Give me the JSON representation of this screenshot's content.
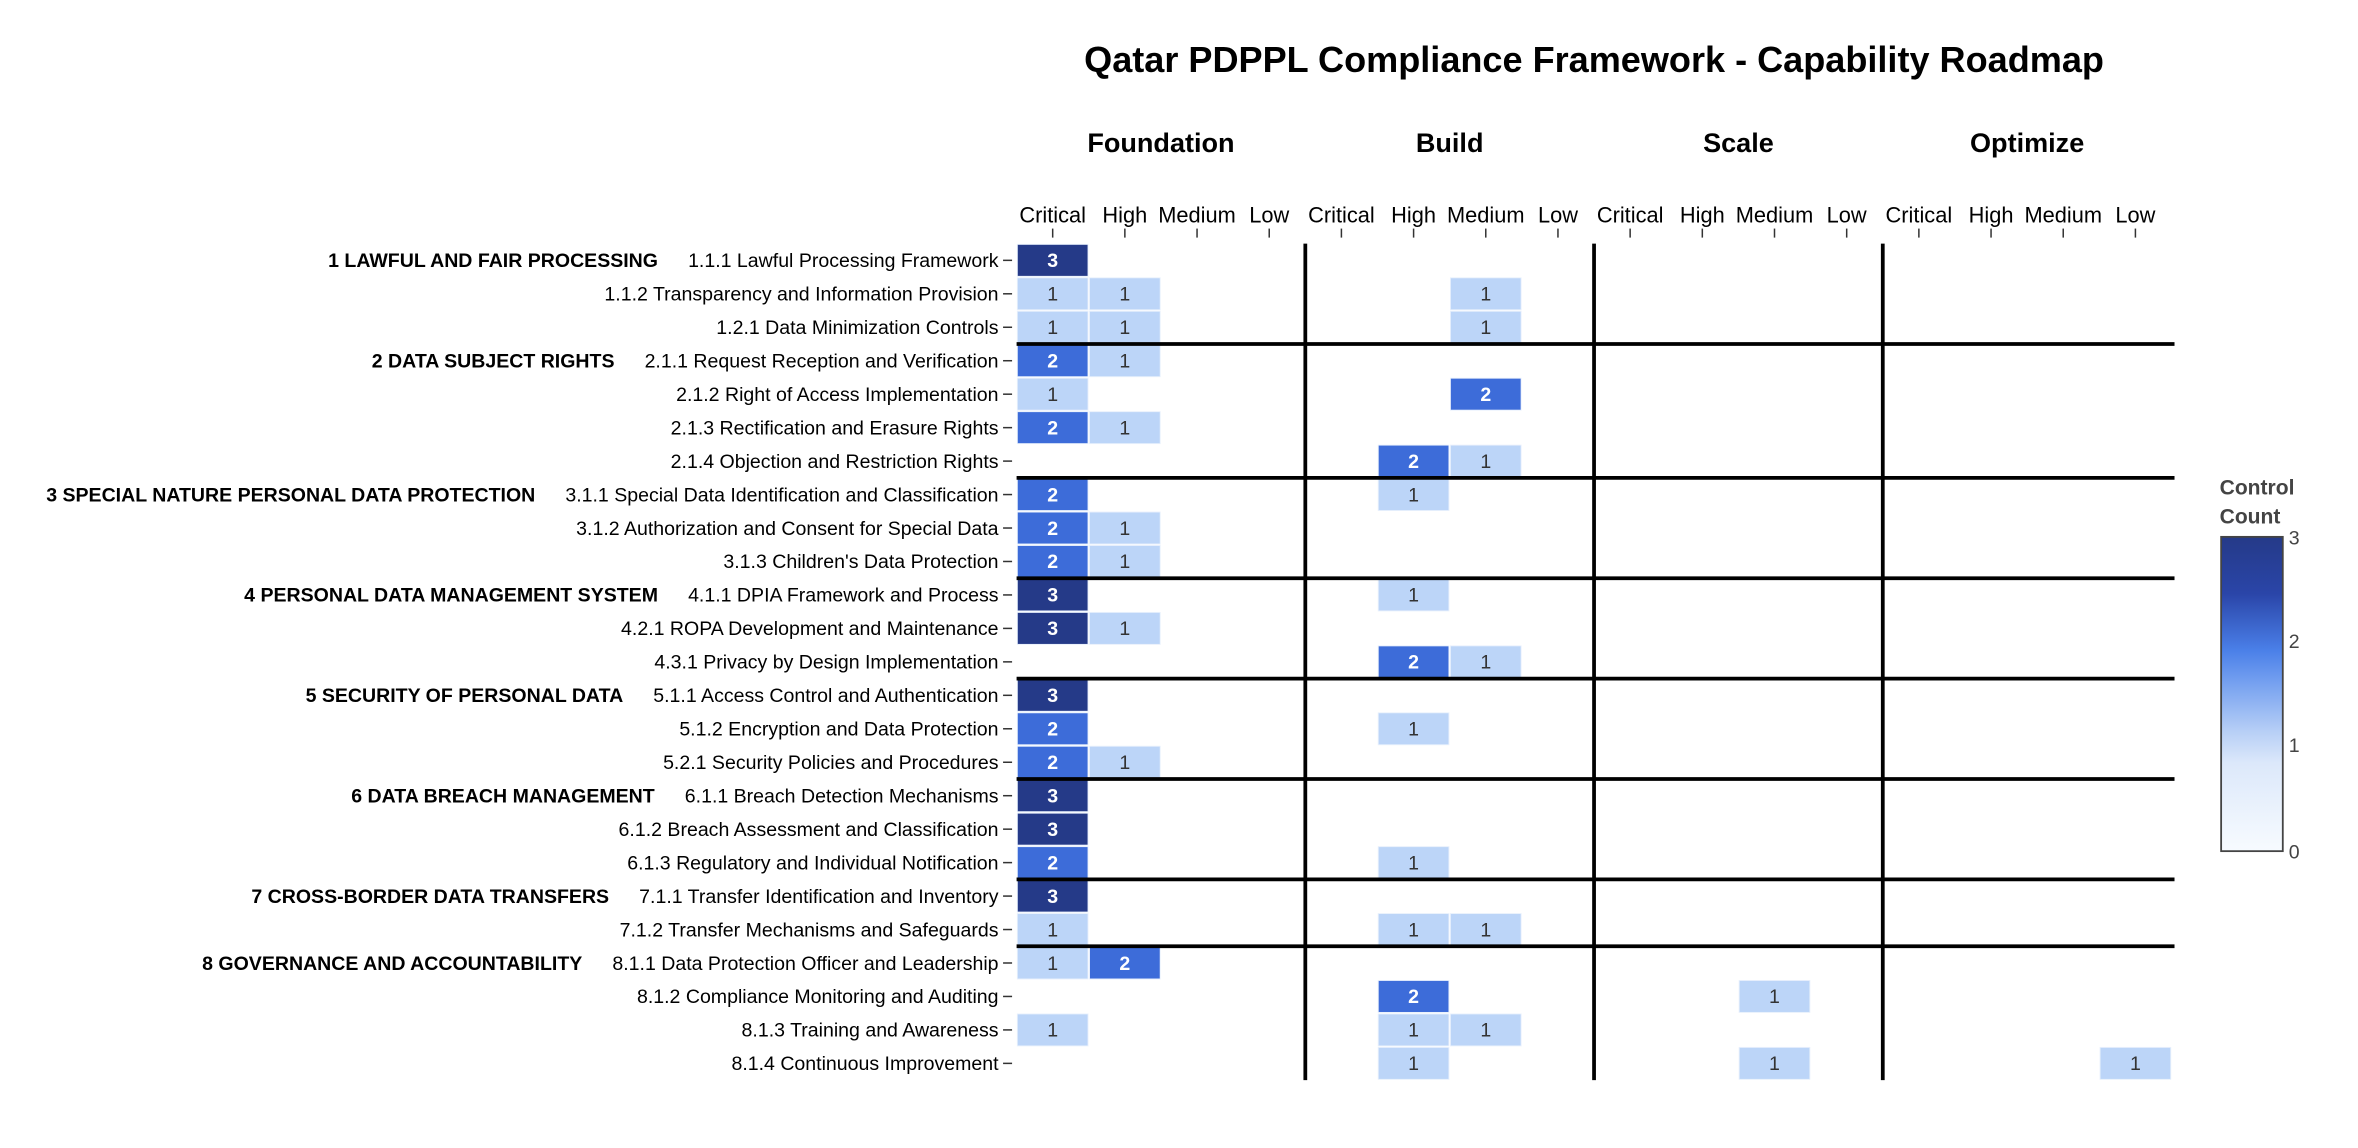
{
  "chart_data": {
    "type": "heatmap",
    "title": "Qatar PDPPL Compliance Framework - Capability Roadmap",
    "phases": [
      "Foundation",
      "Build",
      "Scale",
      "Optimize"
    ],
    "priorities": [
      "Critical",
      "High",
      "Medium",
      "Low"
    ],
    "colorbar": {
      "title_lines": [
        "Control",
        "Count"
      ],
      "range": [
        0,
        3
      ],
      "ticks": [
        "0",
        "1",
        "2",
        "3"
      ]
    },
    "colors": {
      "0": "#ffffff",
      "1": "#bcd5f8",
      "2": "#3d6cd9",
      "3": "#253a88",
      "text_light": "#ffffff",
      "text_dark": "#333333"
    },
    "groups": [
      {
        "label": "1 LAWFUL AND FAIR PROCESSING",
        "rows": [
          {
            "label": "1.1.1 Lawful Processing Framework",
            "cells": [
              {
                "phase": "Foundation",
                "priority": "Critical",
                "value": 3
              }
            ]
          },
          {
            "label": "1.1.2 Transparency and Information Provision",
            "cells": [
              {
                "phase": "Foundation",
                "priority": "Critical",
                "value": 1
              },
              {
                "phase": "Foundation",
                "priority": "High",
                "value": 1
              },
              {
                "phase": "Build",
                "priority": "Medium",
                "value": 1
              }
            ]
          },
          {
            "label": "1.2.1 Data Minimization Controls",
            "cells": [
              {
                "phase": "Foundation",
                "priority": "Critical",
                "value": 1
              },
              {
                "phase": "Foundation",
                "priority": "High",
                "value": 1
              },
              {
                "phase": "Build",
                "priority": "Medium",
                "value": 1
              }
            ]
          }
        ]
      },
      {
        "label": "2 DATA SUBJECT RIGHTS",
        "rows": [
          {
            "label": "2.1.1 Request Reception and Verification",
            "cells": [
              {
                "phase": "Foundation",
                "priority": "Critical",
                "value": 2
              },
              {
                "phase": "Foundation",
                "priority": "High",
                "value": 1
              }
            ]
          },
          {
            "label": "2.1.2 Right of Access Implementation",
            "cells": [
              {
                "phase": "Foundation",
                "priority": "Critical",
                "value": 1
              },
              {
                "phase": "Build",
                "priority": "Medium",
                "value": 2
              }
            ]
          },
          {
            "label": "2.1.3 Rectification and Erasure Rights",
            "cells": [
              {
                "phase": "Foundation",
                "priority": "Critical",
                "value": 2
              },
              {
                "phase": "Foundation",
                "priority": "High",
                "value": 1
              }
            ]
          },
          {
            "label": "2.1.4 Objection and Restriction Rights",
            "cells": [
              {
                "phase": "Build",
                "priority": "High",
                "value": 2
              },
              {
                "phase": "Build",
                "priority": "Medium",
                "value": 1
              }
            ]
          }
        ]
      },
      {
        "label": "3 SPECIAL NATURE PERSONAL DATA PROTECTION",
        "rows": [
          {
            "label": "3.1.1 Special Data Identification and Classification",
            "cells": [
              {
                "phase": "Foundation",
                "priority": "Critical",
                "value": 2
              },
              {
                "phase": "Build",
                "priority": "High",
                "value": 1
              }
            ]
          },
          {
            "label": "3.1.2 Authorization and Consent for Special Data",
            "cells": [
              {
                "phase": "Foundation",
                "priority": "Critical",
                "value": 2
              },
              {
                "phase": "Foundation",
                "priority": "High",
                "value": 1
              }
            ]
          },
          {
            "label": "3.1.3 Children's Data Protection",
            "cells": [
              {
                "phase": "Foundation",
                "priority": "Critical",
                "value": 2
              },
              {
                "phase": "Foundation",
                "priority": "High",
                "value": 1
              }
            ]
          }
        ]
      },
      {
        "label": "4 PERSONAL DATA MANAGEMENT SYSTEM",
        "rows": [
          {
            "label": "4.1.1 DPIA Framework and Process",
            "cells": [
              {
                "phase": "Foundation",
                "priority": "Critical",
                "value": 3
              },
              {
                "phase": "Build",
                "priority": "High",
                "value": 1
              }
            ]
          },
          {
            "label": "4.2.1 ROPA Development and Maintenance",
            "cells": [
              {
                "phase": "Foundation",
                "priority": "Critical",
                "value": 3
              },
              {
                "phase": "Foundation",
                "priority": "High",
                "value": 1
              }
            ]
          },
          {
            "label": "4.3.1 Privacy by Design Implementation",
            "cells": [
              {
                "phase": "Build",
                "priority": "High",
                "value": 2
              },
              {
                "phase": "Build",
                "priority": "Medium",
                "value": 1
              }
            ]
          }
        ]
      },
      {
        "label": "5 SECURITY OF PERSONAL DATA",
        "rows": [
          {
            "label": "5.1.1 Access Control and Authentication",
            "cells": [
              {
                "phase": "Foundation",
                "priority": "Critical",
                "value": 3
              }
            ]
          },
          {
            "label": "5.1.2 Encryption and Data Protection",
            "cells": [
              {
                "phase": "Foundation",
                "priority": "Critical",
                "value": 2
              },
              {
                "phase": "Build",
                "priority": "High",
                "value": 1
              }
            ]
          },
          {
            "label": "5.2.1 Security Policies and Procedures",
            "cells": [
              {
                "phase": "Foundation",
                "priority": "Critical",
                "value": 2
              },
              {
                "phase": "Foundation",
                "priority": "High",
                "value": 1
              }
            ]
          }
        ]
      },
      {
        "label": "6 DATA BREACH MANAGEMENT",
        "rows": [
          {
            "label": "6.1.1 Breach Detection Mechanisms",
            "cells": [
              {
                "phase": "Foundation",
                "priority": "Critical",
                "value": 3
              }
            ]
          },
          {
            "label": "6.1.2 Breach Assessment and Classification",
            "cells": [
              {
                "phase": "Foundation",
                "priority": "Critical",
                "value": 3
              }
            ]
          },
          {
            "label": "6.1.3 Regulatory and Individual Notification",
            "cells": [
              {
                "phase": "Foundation",
                "priority": "Critical",
                "value": 2
              },
              {
                "phase": "Build",
                "priority": "High",
                "value": 1
              }
            ]
          }
        ]
      },
      {
        "label": "7 CROSS-BORDER DATA TRANSFERS",
        "rows": [
          {
            "label": "7.1.1 Transfer Identification and Inventory",
            "cells": [
              {
                "phase": "Foundation",
                "priority": "Critical",
                "value": 3
              }
            ]
          },
          {
            "label": "7.1.2 Transfer Mechanisms and Safeguards",
            "cells": [
              {
                "phase": "Foundation",
                "priority": "Critical",
                "value": 1
              },
              {
                "phase": "Build",
                "priority": "High",
                "value": 1
              },
              {
                "phase": "Build",
                "priority": "Medium",
                "value": 1
              }
            ]
          }
        ]
      },
      {
        "label": "8 GOVERNANCE AND ACCOUNTABILITY",
        "rows": [
          {
            "label": "8.1.1 Data Protection Officer and Leadership",
            "cells": [
              {
                "phase": "Foundation",
                "priority": "Critical",
                "value": 1
              },
              {
                "phase": "Foundation",
                "priority": "High",
                "value": 2
              }
            ]
          },
          {
            "label": "8.1.2 Compliance Monitoring and Auditing",
            "cells": [
              {
                "phase": "Build",
                "priority": "High",
                "value": 2
              },
              {
                "phase": "Scale",
                "priority": "Medium",
                "value": 1
              }
            ]
          },
          {
            "label": "8.1.3 Training and Awareness",
            "cells": [
              {
                "phase": "Foundation",
                "priority": "Critical",
                "value": 1
              },
              {
                "phase": "Build",
                "priority": "High",
                "value": 1
              },
              {
                "phase": "Build",
                "priority": "Medium",
                "value": 1
              }
            ]
          },
          {
            "label": "8.1.4 Continuous Improvement",
            "cells": [
              {
                "phase": "Build",
                "priority": "High",
                "value": 1
              },
              {
                "phase": "Scale",
                "priority": "Medium",
                "value": 1
              },
              {
                "phase": "Optimize",
                "priority": "Low",
                "value": 1
              }
            ]
          }
        ]
      }
    ]
  }
}
